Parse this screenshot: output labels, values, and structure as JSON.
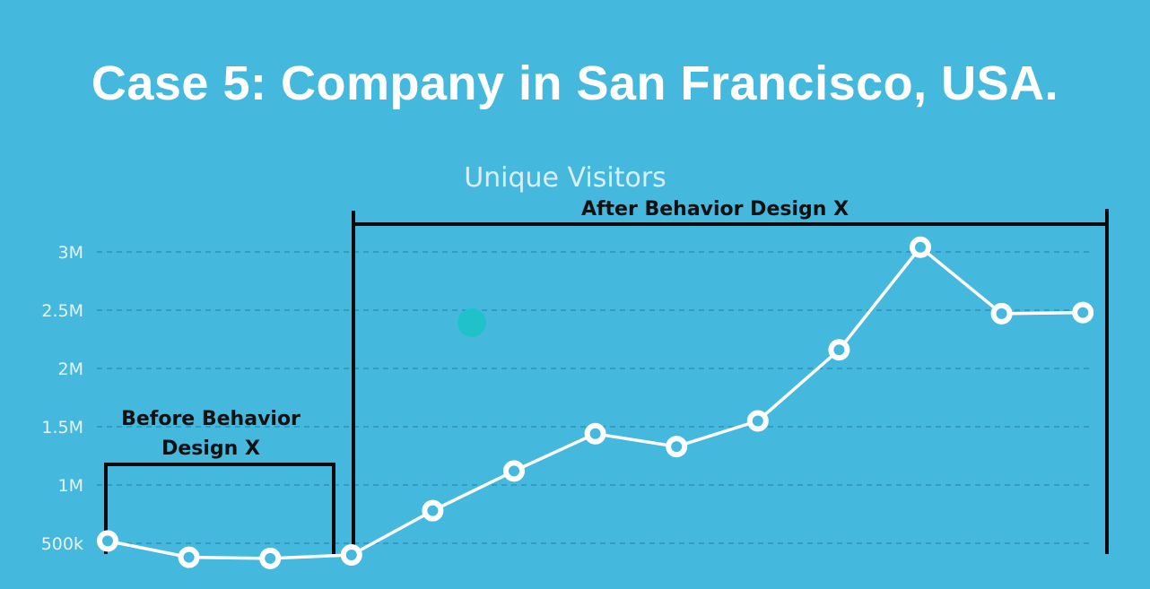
{
  "slide": {
    "title": "Case 5: Company in San Francisco, USA."
  },
  "chart_data": {
    "type": "line",
    "title": "Unique Visitors",
    "xlabel": "",
    "ylabel": "",
    "ylim": [
      420000,
      3150000
    ],
    "yticks": [
      {
        "value": 500000,
        "label": "500k"
      },
      {
        "value": 1000000,
        "label": "1M"
      },
      {
        "value": 1500000,
        "label": "1.5M"
      },
      {
        "value": 2000000,
        "label": "2M"
      },
      {
        "value": 2500000,
        "label": "2.5M"
      },
      {
        "value": 3000000,
        "label": "3M"
      }
    ],
    "grid": true,
    "series": [
      {
        "values": [
          520000,
          380000,
          370000,
          400000,
          780000,
          1120000,
          1440000,
          1330000,
          1550000,
          2160000,
          3040000,
          2470000,
          2480000
        ]
      }
    ],
    "annotations": [
      {
        "label_lines": [
          "Before Behavior",
          "Design X"
        ],
        "from_index": 0,
        "to_index": 3
      },
      {
        "label_lines": [
          "After Behavior Design X"
        ],
        "from_index": 3,
        "to_index": 12
      }
    ],
    "colors": {
      "background": "#45b8de",
      "line": "#ffffff",
      "bracket": "#0b0b0b",
      "marker": "#1fc2c9"
    }
  }
}
